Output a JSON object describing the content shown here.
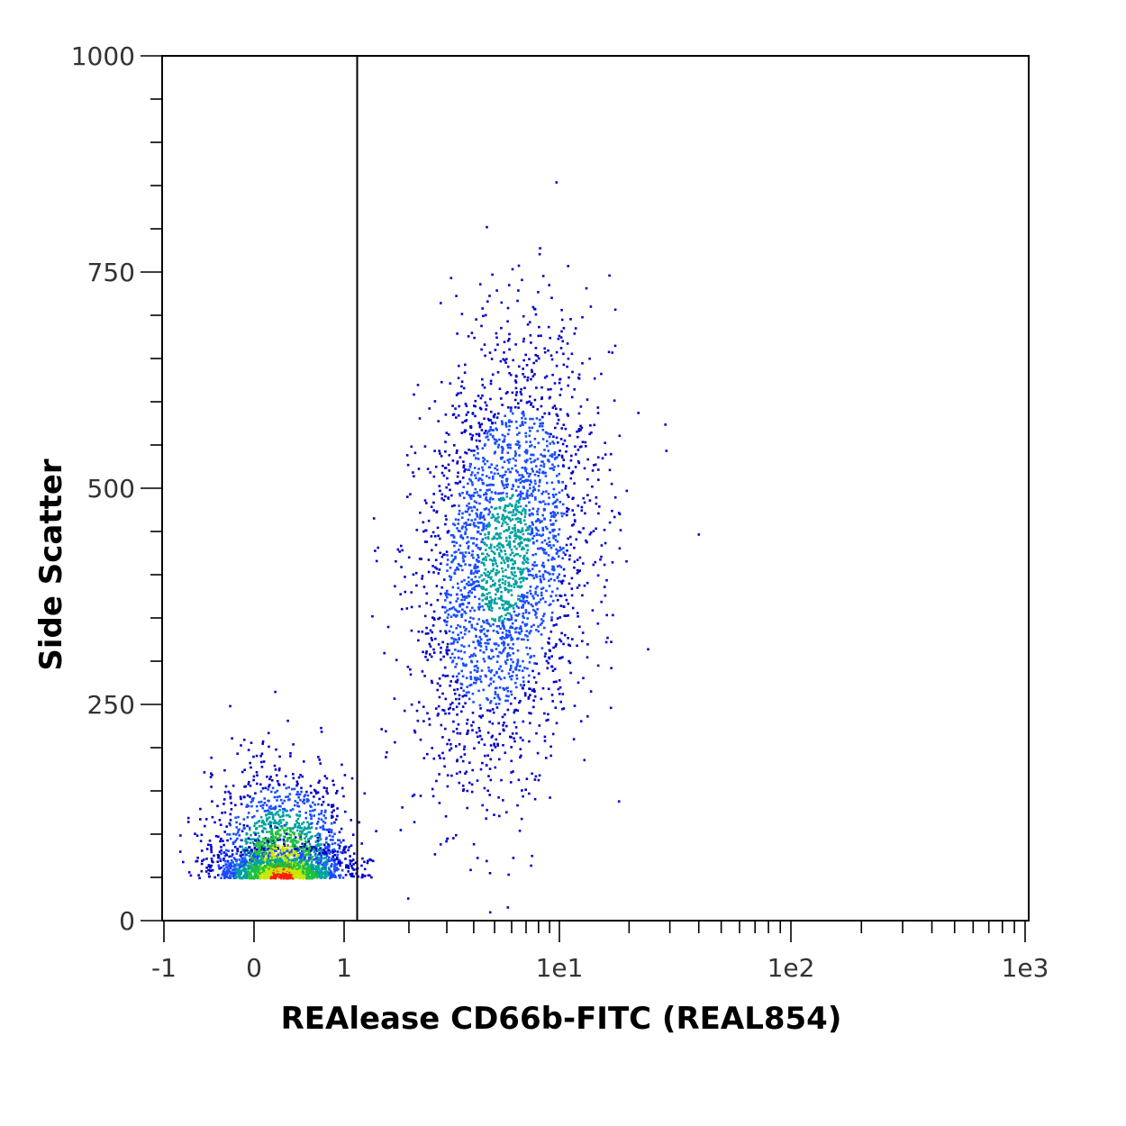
{
  "chart_data": {
    "type": "scatter",
    "style": "density-colored flow cytometry dot plot",
    "title": "",
    "xlabel": "REAlease CD66b-FITC (REAL854)",
    "ylabel": "Side Scatter",
    "x_scale": "biexponential",
    "x_range": [
      -1,
      1000
    ],
    "y_range": [
      0,
      1000
    ],
    "x_ticks": [
      {
        "value": -1,
        "label": "-1"
      },
      {
        "value": 0,
        "label": "0"
      },
      {
        "value": 1,
        "label": "1"
      },
      {
        "value": 10,
        "label": "1e1"
      },
      {
        "value": 100,
        "label": "1e2"
      },
      {
        "value": 1000,
        "label": "1e3"
      }
    ],
    "y_ticks": [
      {
        "value": 0,
        "label": "0"
      },
      {
        "value": 250,
        "label": "250"
      },
      {
        "value": 500,
        "label": "500"
      },
      {
        "value": 750,
        "label": "750"
      },
      {
        "value": 1000,
        "label": "1000"
      }
    ],
    "gate": {
      "type": "vertical-line",
      "x": 1.15
    },
    "populations": [
      {
        "x_center": 0.3,
        "y_center": 50,
        "x_spread": 0.5,
        "y_spread": 45,
        "relative_size": 0.45
      },
      {
        "x_center": 5.5,
        "y_center": 420,
        "x_spread": 3.5,
        "y_spread": 120,
        "relative_size": 0.55
      }
    ],
    "grid": false,
    "legend": "none",
    "density_colors": [
      "#0000c8",
      "#1a4cff",
      "#00a0a0",
      "#20c040",
      "#c8e800",
      "#ff2000"
    ]
  }
}
